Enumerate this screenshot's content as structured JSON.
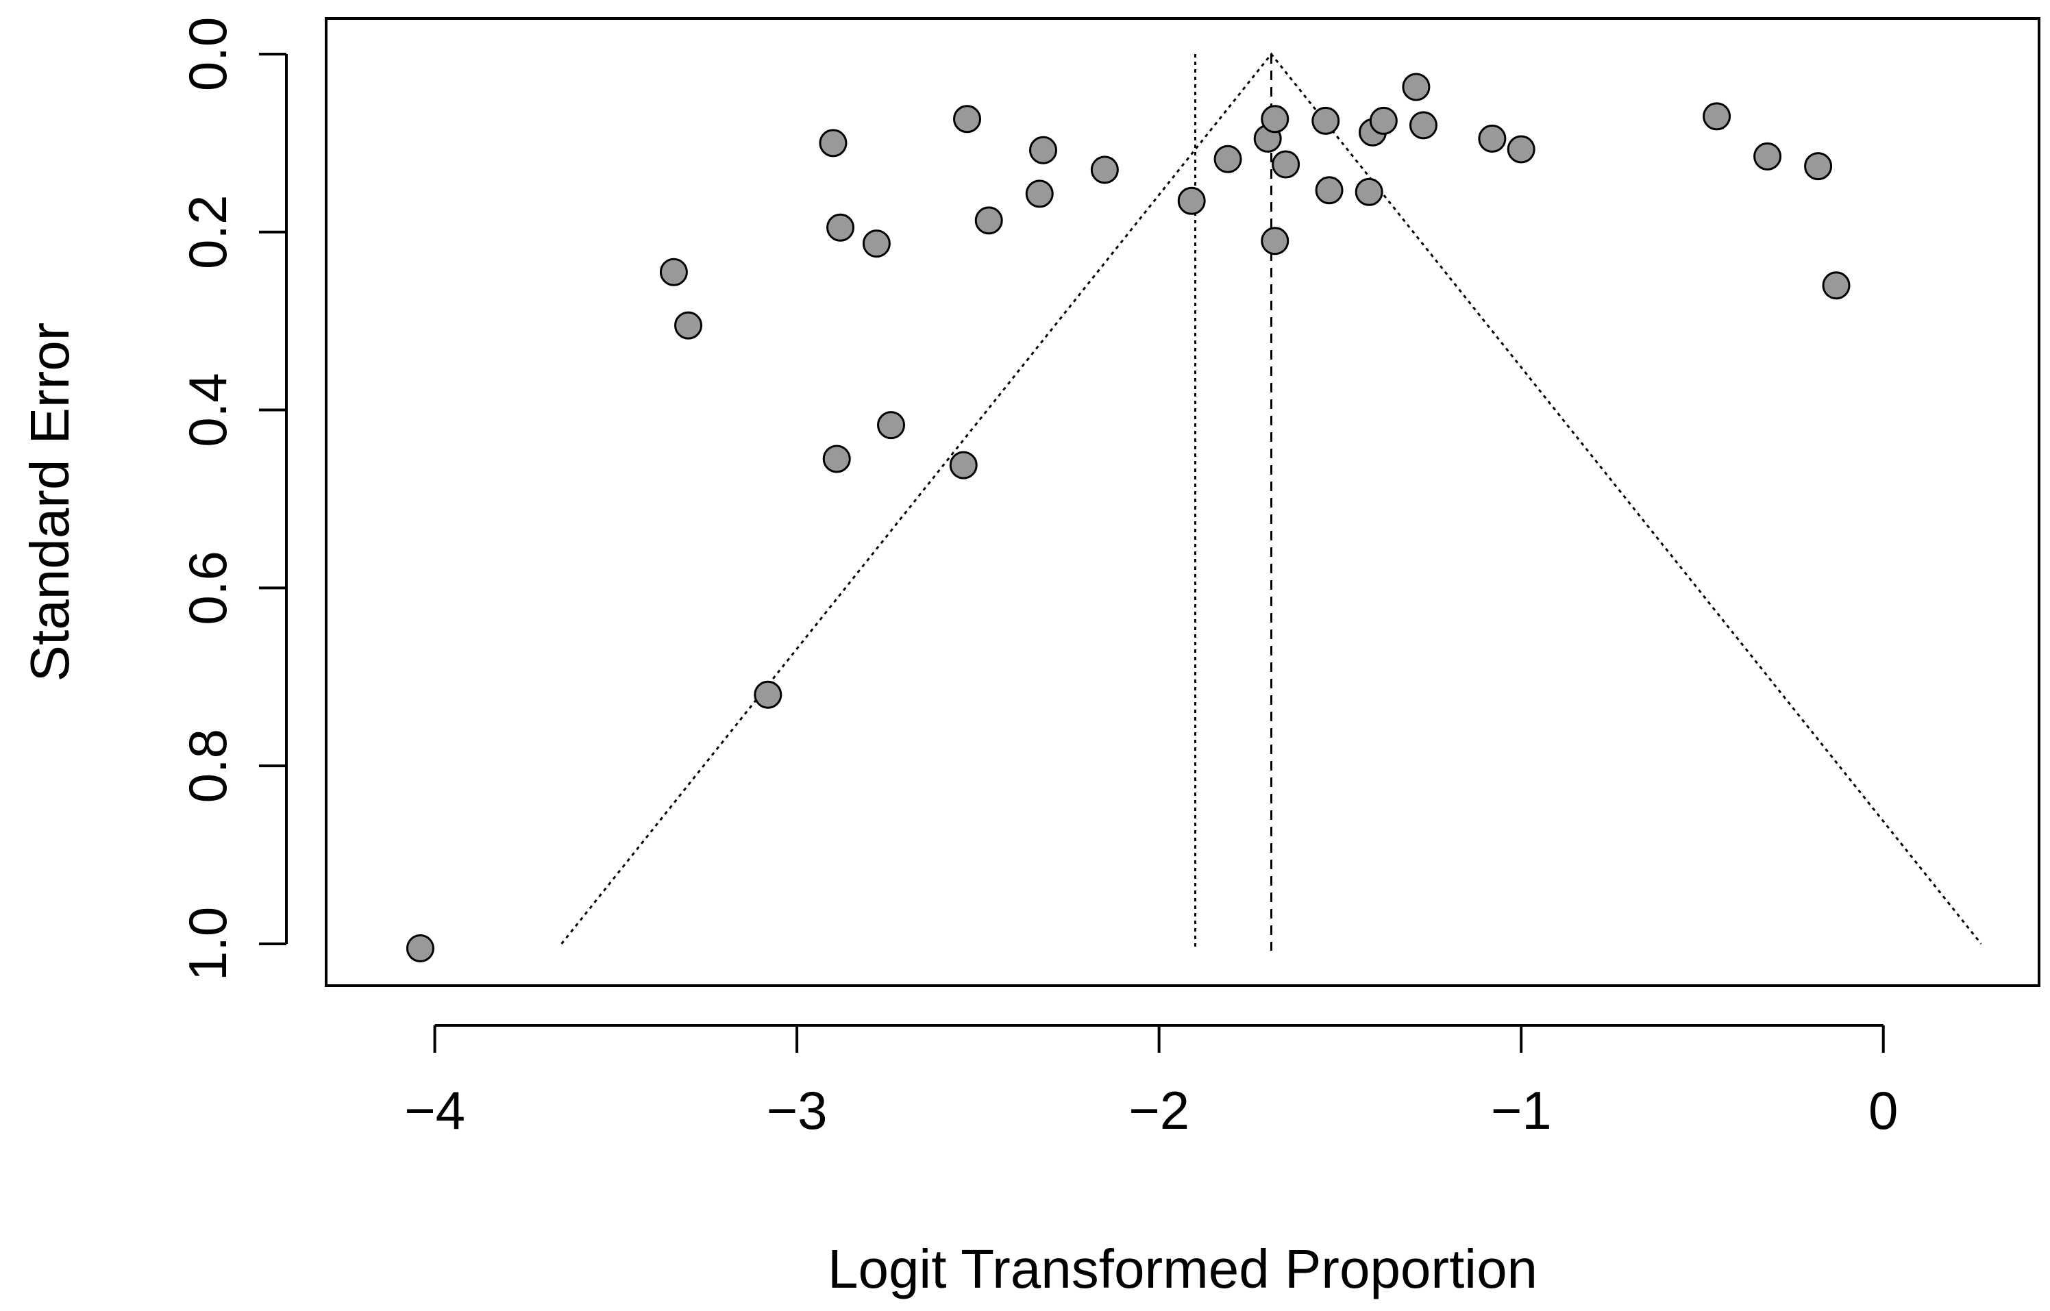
{
  "chart_data": {
    "type": "scatter",
    "subtype": "funnel-plot",
    "title": "",
    "xlabel": "Logit Transformed Proportion",
    "ylabel": "Standard Error",
    "xlim": [
      -4.3,
      0.43
    ],
    "ylim": [
      1.047,
      -0.04
    ],
    "y_reversed": true,
    "grid": false,
    "legend": "none",
    "x_ticks": [
      -4,
      -3,
      -2,
      -1,
      0
    ],
    "x_tick_labels": [
      "−4",
      "−3",
      "−2",
      "−1",
      "0"
    ],
    "y_ticks": [
      0.0,
      0.2,
      0.4,
      0.6,
      0.8,
      1.0
    ],
    "y_tick_labels": [
      "0.0",
      "0.2",
      "0.4",
      "0.6",
      "0.8",
      "1.0"
    ],
    "funnel": {
      "apex_x": -1.69,
      "apex_se": 0.0,
      "left_end": [
        -3.65,
        1.0
      ],
      "right_end": [
        0.27,
        1.0
      ],
      "style": "dotted"
    },
    "reference_lines": [
      {
        "x": -1.69,
        "y_from": 0.0,
        "y_to": 1.0,
        "style": "dashed"
      },
      {
        "x": -1.9,
        "y_from": 0.0,
        "y_to": 1.0,
        "style": "dotted"
      }
    ],
    "marker_fill": "#999999",
    "marker_stroke": "#000000",
    "points": [
      {
        "x": -4.04,
        "y": 1.005
      },
      {
        "x": -3.08,
        "y": 0.72
      },
      {
        "x": -3.34,
        "y": 0.245
      },
      {
        "x": -3.3,
        "y": 0.305
      },
      {
        "x": -2.9,
        "y": 0.1
      },
      {
        "x": -2.88,
        "y": 0.195
      },
      {
        "x": -2.78,
        "y": 0.213
      },
      {
        "x": -2.89,
        "y": 0.455
      },
      {
        "x": -2.74,
        "y": 0.417
      },
      {
        "x": -2.54,
        "y": 0.462
      },
      {
        "x": -2.53,
        "y": 0.073
      },
      {
        "x": -2.47,
        "y": 0.187
      },
      {
        "x": -2.32,
        "y": 0.108
      },
      {
        "x": -2.33,
        "y": 0.157
      },
      {
        "x": -2.15,
        "y": 0.13
      },
      {
        "x": -1.91,
        "y": 0.165
      },
      {
        "x": -1.81,
        "y": 0.118
      },
      {
        "x": -1.7,
        "y": 0.095
      },
      {
        "x": -1.68,
        "y": 0.073
      },
      {
        "x": -1.65,
        "y": 0.124
      },
      {
        "x": -1.68,
        "y": 0.21
      },
      {
        "x": -1.54,
        "y": 0.075
      },
      {
        "x": -1.53,
        "y": 0.153
      },
      {
        "x": -1.41,
        "y": 0.088
      },
      {
        "x": -1.38,
        "y": 0.075
      },
      {
        "x": -1.42,
        "y": 0.155
      },
      {
        "x": -1.29,
        "y": 0.037
      },
      {
        "x": -1.27,
        "y": 0.08
      },
      {
        "x": -1.08,
        "y": 0.095
      },
      {
        "x": -1.0,
        "y": 0.107
      },
      {
        "x": -0.46,
        "y": 0.07
      },
      {
        "x": -0.32,
        "y": 0.115
      },
      {
        "x": -0.18,
        "y": 0.126
      },
      {
        "x": -0.13,
        "y": 0.26
      }
    ]
  }
}
